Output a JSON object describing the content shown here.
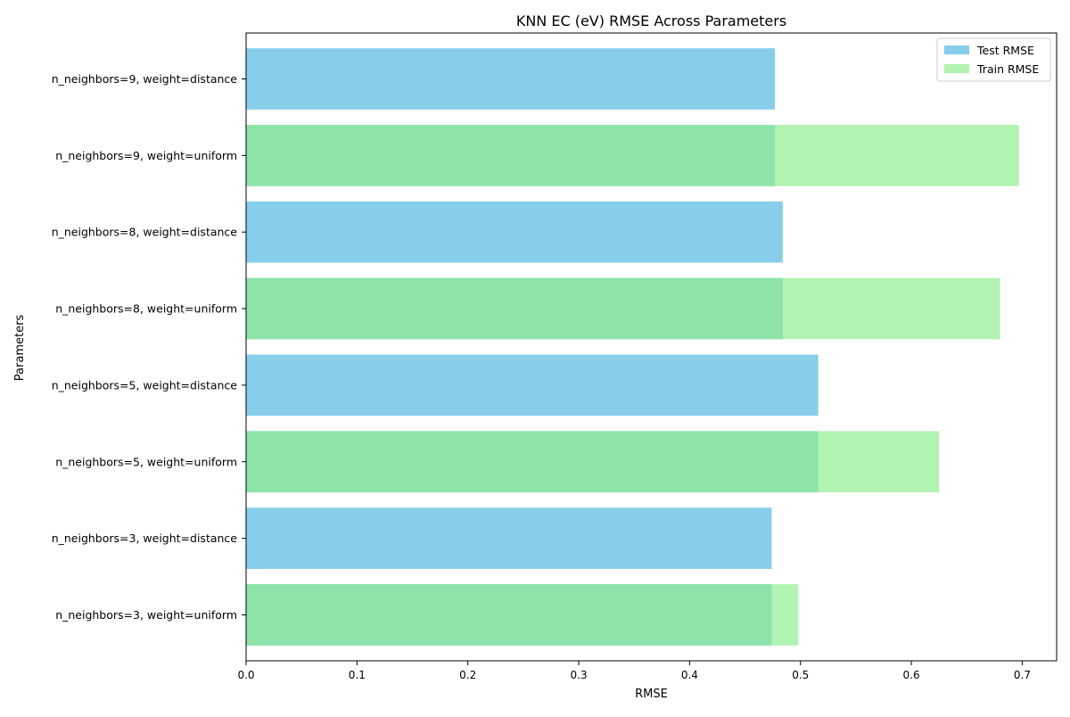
{
  "chart_data": {
    "type": "bar",
    "orientation": "horizontal",
    "title": "KNN EC (eV) RMSE Across Parameters",
    "xlabel": "RMSE",
    "ylabel": "Parameters",
    "categories": [
      "n_neighbors=3, weight=uniform",
      "n_neighbors=3, weight=distance",
      "n_neighbors=5, weight=uniform",
      "n_neighbors=5, weight=distance",
      "n_neighbors=8, weight=uniform",
      "n_neighbors=8, weight=distance",
      "n_neighbors=9, weight=uniform",
      "n_neighbors=9, weight=distance"
    ],
    "series": [
      {
        "name": "Test RMSE",
        "color": "#87CEEB",
        "values": [
          0.474,
          0.474,
          0.516,
          0.516,
          0.484,
          0.484,
          0.477,
          0.477
        ]
      },
      {
        "name": "Train RMSE",
        "color": "#90EE90",
        "opacity": 0.7,
        "values": [
          0.498,
          null,
          0.625,
          null,
          0.68,
          null,
          0.697,
          null
        ]
      }
    ],
    "xlim": [
      0,
      0.731
    ],
    "xticks": [
      "0.0",
      "0.1",
      "0.2",
      "0.3",
      "0.4",
      "0.5",
      "0.6",
      "0.7"
    ],
    "grid": false,
    "legend_position": "top-right"
  }
}
